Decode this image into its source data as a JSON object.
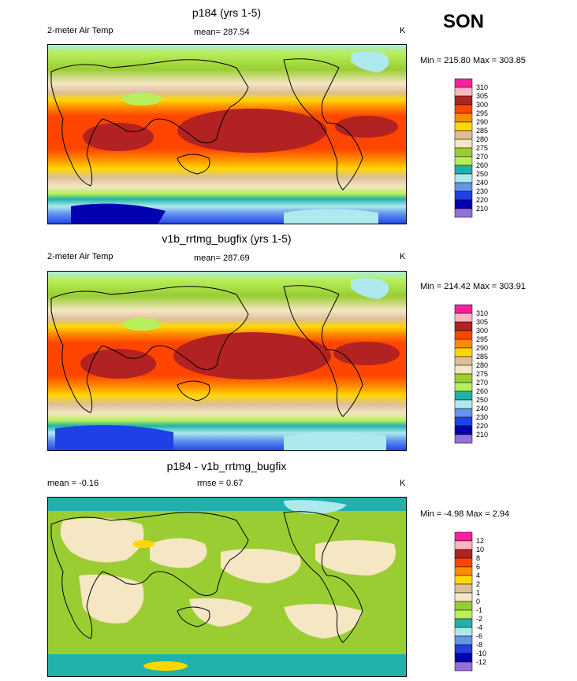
{
  "season": "SON",
  "panels": [
    {
      "id": "p184",
      "title": "p184 (yrs 1-5)",
      "left_label": "2-meter Air Temp",
      "center_label": "mean= 287.54",
      "units": "K",
      "minmax": "Min = 215.80 Max = 303.85",
      "legend_levels": [
        "310",
        "305",
        "300",
        "295",
        "290",
        "285",
        "280",
        "275",
        "270",
        "260",
        "250",
        "240",
        "230",
        "220",
        "210"
      ]
    },
    {
      "id": "v1b",
      "title": "v1b_rrtmg_bugfix (yrs 1-5)",
      "left_label": "2-meter Air Temp",
      "center_label": "mean= 287.69",
      "units": "K",
      "minmax": "Min = 214.42 Max = 303.91",
      "legend_levels": [
        "310",
        "305",
        "300",
        "295",
        "290",
        "285",
        "280",
        "275",
        "270",
        "260",
        "250",
        "240",
        "230",
        "220",
        "210"
      ]
    },
    {
      "id": "diff",
      "title": "p184 - v1b_rrtmg_bugfix",
      "left_label": "mean =  -0.16",
      "center_label": "rmse =   0.67",
      "units": "K",
      "minmax": "Min =  -4.98 Max =   2.94",
      "legend_levels": [
        "12",
        "10",
        "8",
        "6",
        "4",
        "2",
        "1",
        "0",
        "-1",
        "-2",
        "-4",
        "-6",
        "-8",
        "-10",
        "-12"
      ]
    }
  ],
  "colors": {
    "temp_scale": [
      "#ff1f9e",
      "#ffb6c1",
      "#b22222",
      "#ff4500",
      "#ff8c00",
      "#ffd700",
      "#dcbf96",
      "#f5e6c4",
      "#9acd32",
      "#b8ef5a",
      "#20b2aa",
      "#aee9ee",
      "#6495ed",
      "#1e40e6",
      "#0000b0",
      "#9370db"
    ],
    "diff_scale": [
      "#ff1f9e",
      "#ffb6c1",
      "#b22222",
      "#ff4500",
      "#ff8c00",
      "#ffd700",
      "#dcbf96",
      "#f5e6c4",
      "#9acd32",
      "#b8ef5a",
      "#20b2aa",
      "#aee9ee",
      "#6495ed",
      "#1e40e6",
      "#0000b0",
      "#9370db"
    ],
    "coastline": "#000000"
  }
}
